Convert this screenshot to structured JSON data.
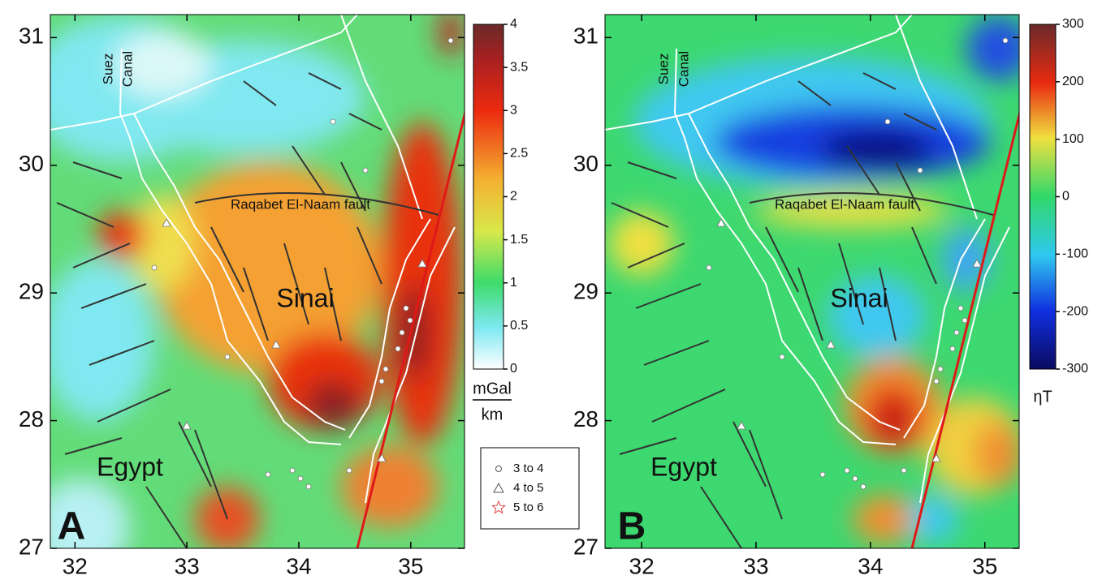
{
  "panels": [
    {
      "label": "A",
      "annotations": {
        "suez": "Suez",
        "canal": "Canal",
        "fault": "Raqabet El-Naam fault",
        "sinai": "Sinai",
        "egypt": "Egypt"
      },
      "xlim": [
        31.78,
        35.48
      ],
      "ylim": [
        27,
        31.18
      ],
      "xticks": [
        32,
        33,
        34,
        35
      ],
      "yticks": [
        27,
        28,
        29,
        30,
        31
      ],
      "colorbar": {
        "lim": [
          0,
          4
        ],
        "ticks": [
          0,
          0.5,
          1,
          1.5,
          2,
          2.5,
          3,
          3.5,
          4
        ],
        "unit": "mGal",
        "unit_denominator": "km"
      }
    },
    {
      "label": "B",
      "annotations": {
        "suez": "Suez",
        "canal": "Canal",
        "fault": "Raqabet El-Naam fault",
        "sinai": "Sinai",
        "egypt": "Egypt"
      },
      "xlim": [
        31.68,
        35.3
      ],
      "ylim": [
        27,
        31.18
      ],
      "xticks": [
        32,
        33,
        34,
        35
      ],
      "yticks": [
        27,
        28,
        29,
        30,
        31
      ],
      "colorbar": {
        "lim": [
          -300,
          300
        ],
        "ticks": [
          -300,
          -200,
          -100,
          0,
          100,
          200,
          300
        ],
        "unit": "ηT"
      }
    }
  ],
  "legend": {
    "entries": [
      {
        "label": "3 to 4",
        "marker": "circle"
      },
      {
        "label": "4 to 5",
        "marker": "triangle"
      },
      {
        "label": "5 to 6",
        "marker": "star"
      }
    ]
  }
}
